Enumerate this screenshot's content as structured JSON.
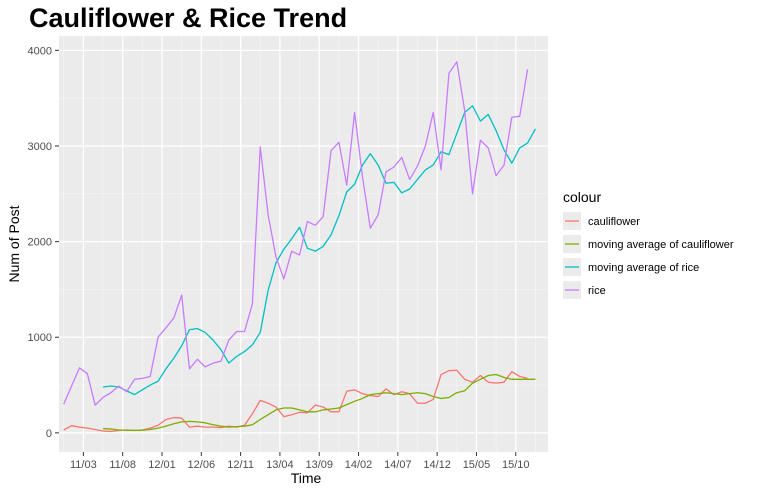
{
  "chart_data": {
    "type": "line",
    "title": "Cauliflower &  Rice Trend",
    "xlabel": "Time",
    "ylabel": "Num of Post",
    "ylim": [
      -200,
      4150
    ],
    "y_ticks": [
      0,
      1000,
      2000,
      3000,
      4000
    ],
    "x_ticks": [
      "11/03",
      "11/08",
      "12/01",
      "12/06",
      "12/11",
      "13/04",
      "13/09",
      "14/02",
      "14/07",
      "14/12",
      "15/05",
      "15/10"
    ],
    "x_tick_index": [
      2.5,
      7.5,
      12.5,
      17.5,
      22.5,
      27.5,
      32.5,
      37.5,
      42.5,
      47.5,
      52.5,
      57.5
    ],
    "x_index_range": [
      -0.6,
      61.6
    ],
    "grid": true,
    "legend": {
      "title": "colour",
      "position": "right"
    },
    "series": [
      {
        "name": "cauliflower",
        "color": "#F8766D",
        "start": 0,
        "values": [
          30,
          75,
          60,
          50,
          35,
          20,
          15,
          25,
          30,
          25,
          30,
          50,
          80,
          140,
          160,
          155,
          60,
          70,
          60,
          60,
          55,
          70,
          60,
          80,
          200,
          340,
          310,
          270,
          170,
          190,
          215,
          210,
          290,
          270,
          220,
          220,
          435,
          450,
          410,
          390,
          380,
          460,
          400,
          430,
          410,
          310,
          310,
          350,
          610,
          650,
          655,
          560,
          530,
          600,
          530,
          520,
          530,
          640,
          590,
          570
        ]
      },
      {
        "name": "moving average of cauliflower",
        "color": "#7CAE00",
        "start": 5,
        "values": [
          45,
          40,
          30,
          28,
          26,
          28,
          35,
          50,
          70,
          95,
          115,
          120,
          115,
          105,
          85,
          70,
          60,
          65,
          70,
          85,
          140,
          190,
          240,
          260,
          260,
          240,
          220,
          220,
          240,
          250,
          260,
          295,
          330,
          360,
          400,
          410,
          420,
          410,
          400,
          410,
          420,
          410,
          380,
          360,
          370,
          420,
          440,
          520,
          560,
          600,
          610,
          580,
          560,
          560,
          560,
          560
        ]
      },
      {
        "name": "moving average of rice",
        "color": "#00BFC4",
        "start": 5,
        "values": [
          480,
          490,
          480,
          440,
          400,
          450,
          500,
          540,
          670,
          780,
          910,
          1080,
          1090,
          1050,
          970,
          870,
          730,
          800,
          850,
          920,
          1050,
          1490,
          1780,
          1920,
          2030,
          2150,
          1930,
          1900,
          1950,
          2070,
          2270,
          2520,
          2600,
          2800,
          2920,
          2800,
          2610,
          2620,
          2510,
          2550,
          2650,
          2750,
          2800,
          2940,
          2910,
          3130,
          3350,
          3420,
          3260,
          3330,
          3160,
          2960,
          2820,
          2980,
          3030,
          3180
        ]
      },
      {
        "name": "rice",
        "color": "#C77CFF",
        "start": 0,
        "values": [
          300,
          490,
          680,
          620,
          290,
          370,
          420,
          490,
          430,
          560,
          570,
          590,
          1000,
          1100,
          1200,
          1440,
          670,
          770,
          690,
          730,
          750,
          970,
          1060,
          1060,
          1350,
          2990,
          2280,
          1840,
          1610,
          1900,
          1860,
          2210,
          2170,
          2260,
          2950,
          3040,
          2590,
          3350,
          2680,
          2140,
          2280,
          2730,
          2780,
          2880,
          2650,
          2790,
          3000,
          3350,
          2750,
          3760,
          3880,
          3370,
          2500,
          3060,
          2980,
          2690,
          2800,
          3300,
          3310,
          3800
        ]
      }
    ]
  }
}
